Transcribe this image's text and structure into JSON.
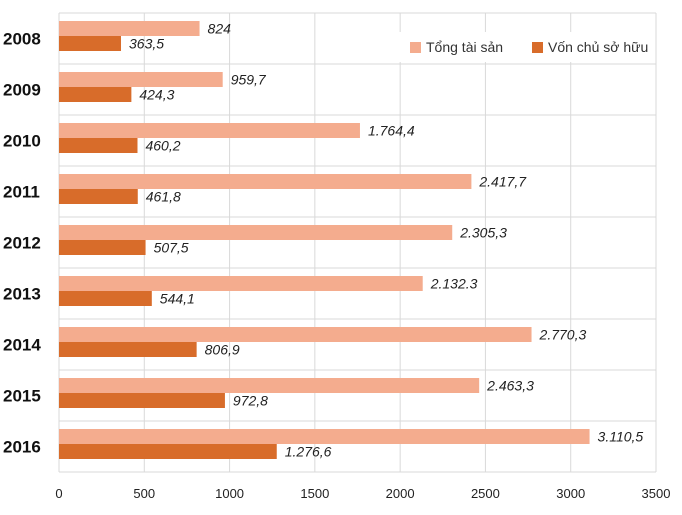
{
  "chart_data": {
    "type": "bar",
    "orientation": "horizontal",
    "categories": [
      "2008",
      "2009",
      "2010",
      "2011",
      "2012",
      "2013",
      "2014",
      "2015",
      "2016"
    ],
    "series": [
      {
        "name": "Tổng tài sản",
        "color": "#F4AC8E",
        "values": [
          824,
          959.7,
          1764.4,
          2417.7,
          2305.3,
          2132.3,
          2770.3,
          2463.3,
          3110.5
        ],
        "labels": [
          "824",
          "959,7",
          "1.764,4",
          "2.417,7",
          "2.305,3",
          "2.132.3",
          "2.770,3",
          "2.463,3",
          "3.110,5"
        ]
      },
      {
        "name": "Vốn chủ sở hữu",
        "color": "#D86C2A",
        "values": [
          363.5,
          424.3,
          460.2,
          461.8,
          507.5,
          544.1,
          806.9,
          972.8,
          1276.6
        ],
        "labels": [
          "363,5",
          "424,3",
          "460,2",
          "461,8",
          "507,5",
          "544,1",
          "806,9",
          "972,8",
          "1.276,6"
        ]
      }
    ],
    "xlim": [
      0,
      3500
    ],
    "xticks": [
      "0",
      "500",
      "1000",
      "1500",
      "2000",
      "2500",
      "3000",
      "3500"
    ],
    "grid": true,
    "legend_position": "top-right",
    "title": "",
    "xlabel": "",
    "ylabel": ""
  }
}
